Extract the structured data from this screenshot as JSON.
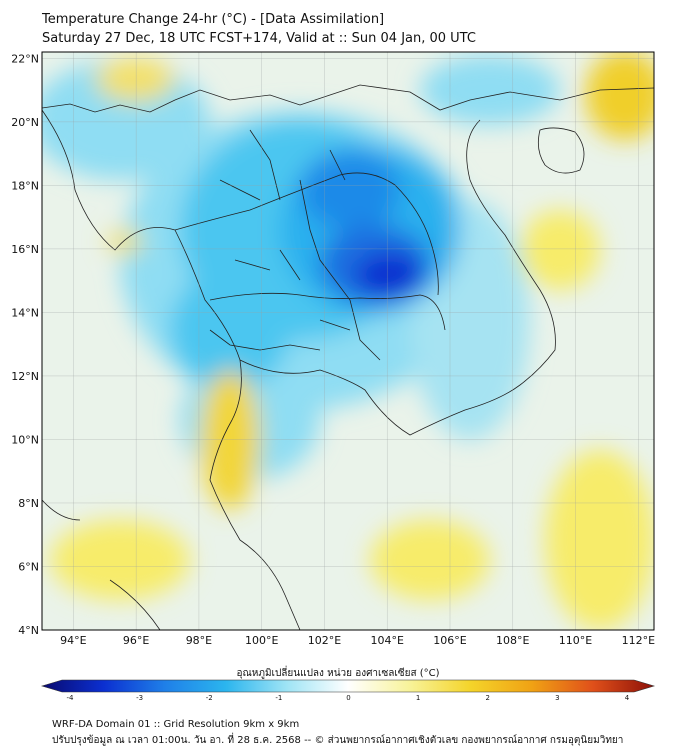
{
  "header": {
    "title_line1": "Temperature Change 24-hr (°C) - [Data Assimilation]",
    "title_line2": "Saturday 27 Dec, 18 UTC FCST+174, Valid at :: Sun 04 Jan, 00 UTC"
  },
  "map": {
    "lat_labels": [
      "22°N",
      "20°N",
      "18°N",
      "16°N",
      "14°N",
      "12°N",
      "10°N",
      "8°N",
      "6°N",
      "4°N"
    ],
    "lon_labels": [
      "94°E",
      "96°E",
      "98°E",
      "100°E",
      "102°E",
      "104°E",
      "106°E",
      "108°E",
      "110°E",
      "112°E"
    ],
    "field_colors": {
      "base": "#eaf3ea",
      "cold_light": "#66d4f2",
      "cold": "#2ab0ee",
      "cold_strong": "#1a6ee0",
      "cold_max": "#0a2fd0",
      "warm": "#f7ec6a",
      "warm_strong": "#f0cf2c"
    }
  },
  "colorbar": {
    "label": "อุณหภูมิเปลี่ยนแปลง หน่วย องศาเซลเซียส (°C)",
    "ticks": [
      "-4",
      "-3",
      "-2",
      "-1",
      "0",
      "1",
      "2",
      "3",
      "4"
    ],
    "colors": [
      "#0a0a6e",
      "#0b2fd0",
      "#1f7fe8",
      "#2bb5ee",
      "#9fe4f5",
      "#ffffff",
      "#f8f39a",
      "#f4d42a",
      "#f0a214",
      "#e0501a",
      "#8c1008"
    ]
  },
  "footer": {
    "line1": "WRF-DA Domain 01 :: Grid Resolution 9km x 9km",
    "line2": "ปรับปรุงข้อมูล ณ เวลา 01:00น. วัน อา. ที่ 28 ธ.ค. 2568 -- © ส่วนพยากรณ์อากาศเชิงตัวเลข กองพยากรณ์อากาศ กรมอุตุนิยมวิทยา"
  }
}
